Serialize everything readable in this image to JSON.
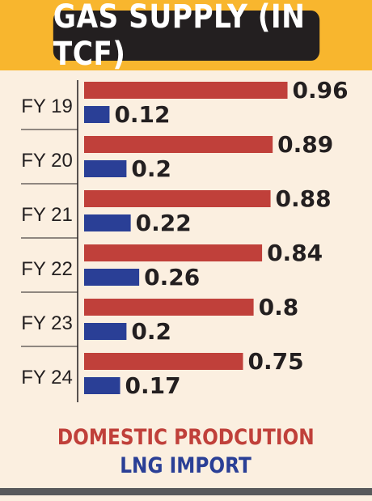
{
  "colors": {
    "header_bg": "#f8b62e",
    "title_bg": "#231f20",
    "background": "#fbefe0",
    "domestic": "#c0403a",
    "lng": "#2a3f96"
  },
  "chart_data": {
    "type": "bar",
    "orientation": "horizontal",
    "title": "GAS SUPPLY (IN TCF)",
    "categories": [
      "FY 19",
      "FY 20",
      "FY 21",
      "FY 22",
      "FY 23",
      "FY 24"
    ],
    "series": [
      {
        "name": "DOMESTIC PRODCUTION",
        "color": "#c0403a",
        "values": [
          0.96,
          0.89,
          0.88,
          0.84,
          0.8,
          0.75
        ]
      },
      {
        "name": "LNG IMPORT",
        "color": "#2a3f96",
        "values": [
          0.12,
          0.2,
          0.22,
          0.26,
          0.2,
          0.17
        ]
      }
    ],
    "value_labels": [
      [
        "0.96",
        "0.89",
        "0.88",
        "0.84",
        "0.8",
        "0.75"
      ],
      [
        "0.12",
        "0.2",
        "0.22",
        "0.26",
        "0.2",
        "0.17"
      ]
    ],
    "xlim": [
      0,
      1
    ],
    "legend_position": "bottom",
    "grid": false
  }
}
